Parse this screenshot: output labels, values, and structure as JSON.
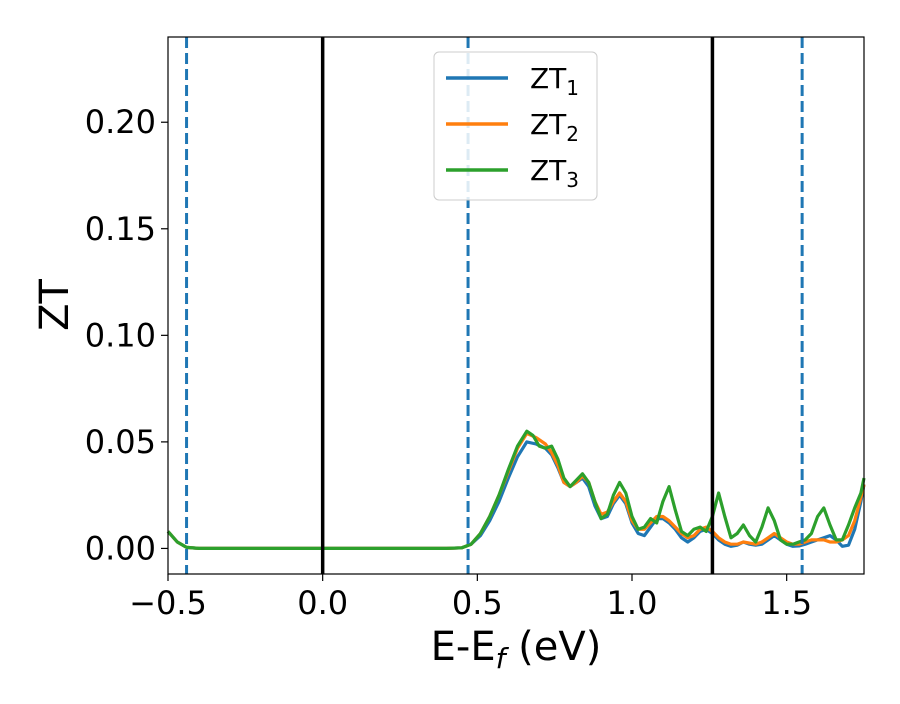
{
  "chart_data": {
    "type": "line",
    "xlabel": "E-E",
    "xlabel_sub": "f",
    "xlabel_unit": " (eV)",
    "ylabel": "ZT",
    "xlim": [
      -0.5,
      1.75
    ],
    "ylim": [
      -0.012,
      0.24
    ],
    "xticks": [
      -0.5,
      0.0,
      0.5,
      1.0,
      1.5
    ],
    "xtick_labels": [
      "−0.5",
      "0.0",
      "0.5",
      "1.0",
      "1.5"
    ],
    "yticks": [
      0.0,
      0.05,
      0.1,
      0.15,
      0.2
    ],
    "ytick_labels": [
      "0.00",
      "0.05",
      "0.10",
      "0.15",
      "0.20"
    ],
    "grid": false,
    "legend_position": "upper-center",
    "vlines": [
      {
        "x": -0.44,
        "style": "dashed",
        "color": "#1f77b4"
      },
      {
        "x": 0.0,
        "style": "solid",
        "color": "#000000"
      },
      {
        "x": 0.47,
        "style": "dashed",
        "color": "#1f77b4"
      },
      {
        "x": 1.26,
        "style": "solid",
        "color": "#000000"
      },
      {
        "x": 1.55,
        "style": "dashed",
        "color": "#1f77b4"
      }
    ],
    "series": [
      {
        "name": "ZT",
        "name_sub": "1",
        "color": "#1f77b4",
        "points": [
          [
            -0.5,
            0.008
          ],
          [
            -0.47,
            0.003
          ],
          [
            -0.44,
            0.0005
          ],
          [
            -0.4,
            0.0
          ],
          [
            0.0,
            0.0
          ],
          [
            0.4,
            0.0
          ],
          [
            0.45,
            0.0003
          ],
          [
            0.48,
            0.002
          ],
          [
            0.51,
            0.006
          ],
          [
            0.54,
            0.013
          ],
          [
            0.57,
            0.022
          ],
          [
            0.6,
            0.033
          ],
          [
            0.63,
            0.043
          ],
          [
            0.66,
            0.05
          ],
          [
            0.69,
            0.049
          ],
          [
            0.72,
            0.047
          ],
          [
            0.74,
            0.044
          ],
          [
            0.76,
            0.038
          ],
          [
            0.78,
            0.031
          ],
          [
            0.8,
            0.029
          ],
          [
            0.82,
            0.031
          ],
          [
            0.84,
            0.033
          ],
          [
            0.86,
            0.029
          ],
          [
            0.88,
            0.02
          ],
          [
            0.9,
            0.014
          ],
          [
            0.92,
            0.015
          ],
          [
            0.94,
            0.021
          ],
          [
            0.96,
            0.025
          ],
          [
            0.98,
            0.021
          ],
          [
            1.0,
            0.012
          ],
          [
            1.02,
            0.007
          ],
          [
            1.04,
            0.006
          ],
          [
            1.06,
            0.01
          ],
          [
            1.08,
            0.014
          ],
          [
            1.1,
            0.014
          ],
          [
            1.12,
            0.012
          ],
          [
            1.14,
            0.009
          ],
          [
            1.16,
            0.005
          ],
          [
            1.18,
            0.003
          ],
          [
            1.2,
            0.005
          ],
          [
            1.22,
            0.008
          ],
          [
            1.24,
            0.009
          ],
          [
            1.26,
            0.007
          ],
          [
            1.28,
            0.004
          ],
          [
            1.3,
            0.002
          ],
          [
            1.32,
            0.001
          ],
          [
            1.34,
            0.0015
          ],
          [
            1.36,
            0.003
          ],
          [
            1.38,
            0.002
          ],
          [
            1.4,
            0.0015
          ],
          [
            1.42,
            0.002
          ],
          [
            1.44,
            0.004
          ],
          [
            1.46,
            0.006
          ],
          [
            1.48,
            0.004
          ],
          [
            1.5,
            0.002
          ],
          [
            1.52,
            0.001
          ],
          [
            1.54,
            0.0012
          ],
          [
            1.56,
            0.002
          ],
          [
            1.58,
            0.003
          ],
          [
            1.6,
            0.004
          ],
          [
            1.62,
            0.005
          ],
          [
            1.64,
            0.006
          ],
          [
            1.66,
            0.004
          ],
          [
            1.68,
            0.001
          ],
          [
            1.7,
            0.0015
          ],
          [
            1.72,
            0.009
          ],
          [
            1.74,
            0.022
          ],
          [
            1.75,
            0.03
          ]
        ]
      },
      {
        "name": "ZT",
        "name_sub": "2",
        "color": "#ff7f0e",
        "points": [
          [
            -0.5,
            0.008
          ],
          [
            -0.47,
            0.003
          ],
          [
            -0.44,
            0.0005
          ],
          [
            -0.4,
            0.0
          ],
          [
            0.0,
            0.0
          ],
          [
            0.4,
            0.0
          ],
          [
            0.45,
            0.0003
          ],
          [
            0.48,
            0.002
          ],
          [
            0.51,
            0.007
          ],
          [
            0.54,
            0.015
          ],
          [
            0.57,
            0.025
          ],
          [
            0.6,
            0.036
          ],
          [
            0.63,
            0.047
          ],
          [
            0.66,
            0.054
          ],
          [
            0.69,
            0.052
          ],
          [
            0.72,
            0.049
          ],
          [
            0.74,
            0.045
          ],
          [
            0.76,
            0.039
          ],
          [
            0.78,
            0.031
          ],
          [
            0.8,
            0.029
          ],
          [
            0.82,
            0.031
          ],
          [
            0.84,
            0.034
          ],
          [
            0.86,
            0.031
          ],
          [
            0.88,
            0.022
          ],
          [
            0.9,
            0.016
          ],
          [
            0.92,
            0.017
          ],
          [
            0.94,
            0.022
          ],
          [
            0.96,
            0.026
          ],
          [
            0.98,
            0.022
          ],
          [
            1.0,
            0.013
          ],
          [
            1.02,
            0.009
          ],
          [
            1.04,
            0.009
          ],
          [
            1.06,
            0.012
          ],
          [
            1.08,
            0.015
          ],
          [
            1.1,
            0.015
          ],
          [
            1.12,
            0.013
          ],
          [
            1.14,
            0.01
          ],
          [
            1.16,
            0.007
          ],
          [
            1.18,
            0.005
          ],
          [
            1.2,
            0.006
          ],
          [
            1.22,
            0.009
          ],
          [
            1.24,
            0.01
          ],
          [
            1.26,
            0.008
          ],
          [
            1.28,
            0.005
          ],
          [
            1.3,
            0.003
          ],
          [
            1.32,
            0.002
          ],
          [
            1.34,
            0.002
          ],
          [
            1.36,
            0.003
          ],
          [
            1.38,
            0.0025
          ],
          [
            1.4,
            0.002
          ],
          [
            1.42,
            0.003
          ],
          [
            1.44,
            0.005
          ],
          [
            1.46,
            0.007
          ],
          [
            1.48,
            0.005
          ],
          [
            1.5,
            0.003
          ],
          [
            1.52,
            0.002
          ],
          [
            1.54,
            0.002
          ],
          [
            1.56,
            0.003
          ],
          [
            1.58,
            0.004
          ],
          [
            1.6,
            0.004
          ],
          [
            1.62,
            0.004
          ],
          [
            1.64,
            0.003
          ],
          [
            1.66,
            0.003
          ],
          [
            1.68,
            0.004
          ],
          [
            1.7,
            0.006
          ],
          [
            1.72,
            0.013
          ],
          [
            1.74,
            0.024
          ],
          [
            1.75,
            0.03
          ]
        ]
      },
      {
        "name": "ZT",
        "name_sub": "3",
        "color": "#2ca02c",
        "points": [
          [
            -0.5,
            0.008
          ],
          [
            -0.47,
            0.003
          ],
          [
            -0.44,
            0.0005
          ],
          [
            -0.4,
            0.0
          ],
          [
            0.0,
            0.0
          ],
          [
            0.4,
            0.0
          ],
          [
            0.45,
            0.0003
          ],
          [
            0.48,
            0.002
          ],
          [
            0.51,
            0.007
          ],
          [
            0.54,
            0.015
          ],
          [
            0.57,
            0.025
          ],
          [
            0.6,
            0.037
          ],
          [
            0.63,
            0.048
          ],
          [
            0.66,
            0.055
          ],
          [
            0.68,
            0.053
          ],
          [
            0.7,
            0.048
          ],
          [
            0.72,
            0.047
          ],
          [
            0.74,
            0.048
          ],
          [
            0.76,
            0.042
          ],
          [
            0.78,
            0.033
          ],
          [
            0.8,
            0.029
          ],
          [
            0.82,
            0.032
          ],
          [
            0.84,
            0.035
          ],
          [
            0.86,
            0.031
          ],
          [
            0.88,
            0.022
          ],
          [
            0.9,
            0.014
          ],
          [
            0.92,
            0.016
          ],
          [
            0.94,
            0.025
          ],
          [
            0.96,
            0.031
          ],
          [
            0.98,
            0.026
          ],
          [
            1.0,
            0.015
          ],
          [
            1.02,
            0.009
          ],
          [
            1.04,
            0.01
          ],
          [
            1.06,
            0.014
          ],
          [
            1.08,
            0.012
          ],
          [
            1.1,
            0.022
          ],
          [
            1.12,
            0.029
          ],
          [
            1.14,
            0.018
          ],
          [
            1.16,
            0.008
          ],
          [
            1.18,
            0.006
          ],
          [
            1.2,
            0.009
          ],
          [
            1.22,
            0.01
          ],
          [
            1.24,
            0.008
          ],
          [
            1.26,
            0.015
          ],
          [
            1.28,
            0.026
          ],
          [
            1.3,
            0.015
          ],
          [
            1.32,
            0.005
          ],
          [
            1.34,
            0.007
          ],
          [
            1.36,
            0.011
          ],
          [
            1.38,
            0.006
          ],
          [
            1.4,
            0.003
          ],
          [
            1.42,
            0.01
          ],
          [
            1.44,
            0.019
          ],
          [
            1.46,
            0.013
          ],
          [
            1.48,
            0.004
          ],
          [
            1.5,
            0.002
          ],
          [
            1.52,
            0.002
          ],
          [
            1.54,
            0.003
          ],
          [
            1.56,
            0.004
          ],
          [
            1.58,
            0.007
          ],
          [
            1.6,
            0.015
          ],
          [
            1.62,
            0.019
          ],
          [
            1.64,
            0.011
          ],
          [
            1.66,
            0.004
          ],
          [
            1.68,
            0.004
          ],
          [
            1.7,
            0.011
          ],
          [
            1.72,
            0.019
          ],
          [
            1.74,
            0.026
          ],
          [
            1.75,
            0.033
          ]
        ]
      }
    ]
  }
}
